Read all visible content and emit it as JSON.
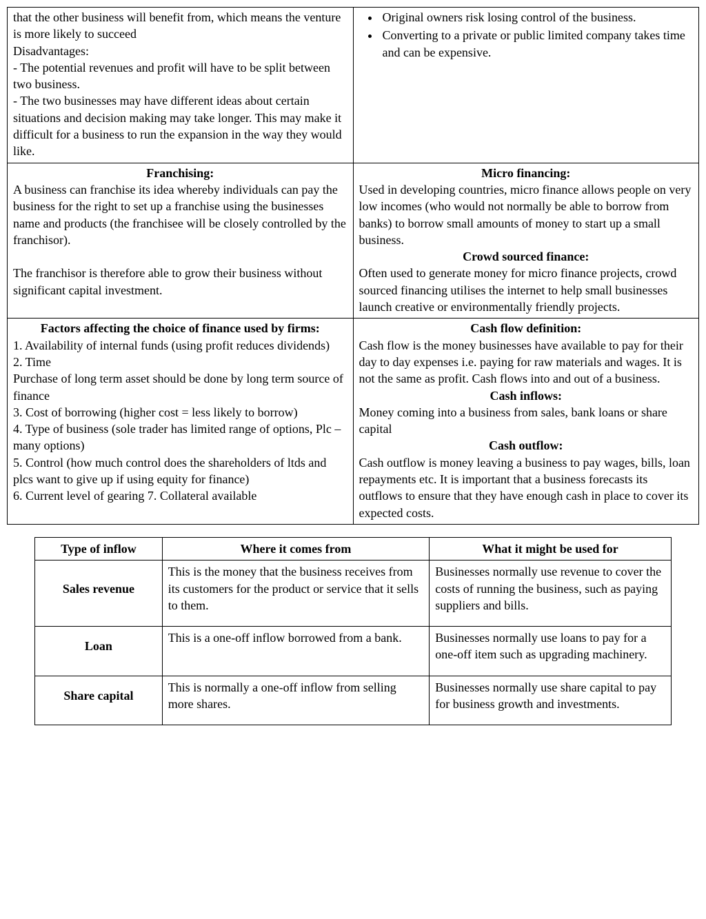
{
  "grid": {
    "r1c1": {
      "lines": [
        "that the other business will benefit from, which means the venture is more likely to succeed",
        "Disadvantages:",
        "- The potential revenues and profit will have to be split between two business.",
        "- The two businesses may have different ideas about certain situations and decision making may take longer. This may make it difficult for a business to run the expansion in the way they would like."
      ]
    },
    "r1c2": {
      "bullets": [
        "Original owners risk losing control of the business.",
        "Converting to a private or public limited company takes time and can be expensive."
      ]
    },
    "r2c1": {
      "title": "Franchising:",
      "p1": "A business can franchise its idea whereby individuals can pay the business for the right to set up a franchise using the businesses name and products (the franchisee will be closely controlled by the franchisor).",
      "p2": "The franchisor is therefore able to grow their business without significant capital investment."
    },
    "r2c2": {
      "t1": "Micro financing:",
      "p1": "Used in developing countries, micro finance allows people on very low incomes (who would not normally be able to borrow from banks) to borrow small amounts of money to start up a small business.",
      "t2": "Crowd sourced finance:",
      "p2": "Often used to generate money for micro finance projects, crowd sourced financing utilises the internet to help small businesses launch creative or environmentally friendly projects."
    },
    "r3c1": {
      "title": "Factors affecting the choice of finance used by firms:",
      "lines": [
        "1. Availability of internal funds (using profit reduces dividends)",
        "2. Time",
        "Purchase of long term asset should be done by long term source of finance",
        "3. Cost of  borrowing (higher cost = less likely to borrow)",
        "4. Type of business (sole trader has limited range of options, Plc – many options)",
        "5. Control (how much control does the shareholders of ltds and plcs want to give up if using equity for finance)",
        "6. Current level of gearing 7. Collateral available"
      ]
    },
    "r3c2": {
      "t1": "Cash flow definition:",
      "p1": "Cash flow is the money businesses have available to pay for their day to day expenses i.e. paying for raw materials and wages. It is not the same as profit. Cash flows into and out of a business.",
      "t2": "Cash inflows:",
      "p2": "Money coming into a business from sales, bank loans or share capital",
      "t3": "Cash outflow:",
      "p3": "Cash outflow is money leaving a business to pay wages, bills, loan repayments etc. It is important that a business forecasts its outflows to ensure that they have enough cash in place to cover its expected costs."
    }
  },
  "inflow": {
    "headers": [
      "Type of inflow",
      "Where it comes from",
      "What it might be used for"
    ],
    "rows": [
      {
        "label": "Sales revenue",
        "from": "This is the money that the business receives from its customers for the product or service that it sells to them.",
        "use": "Businesses normally use revenue to cover the costs of running the business, such as paying suppliers and bills."
      },
      {
        "label": "Loan",
        "from": "This is a one-off inflow borrowed from a bank.",
        "use": "Businesses normally use loans to pay for a one-off item such as upgrading machinery."
      },
      {
        "label": "Share capital",
        "from": "This is normally a one-off inflow from selling more shares.",
        "use": "Businesses normally use share capital to pay for business growth and investments."
      }
    ]
  }
}
